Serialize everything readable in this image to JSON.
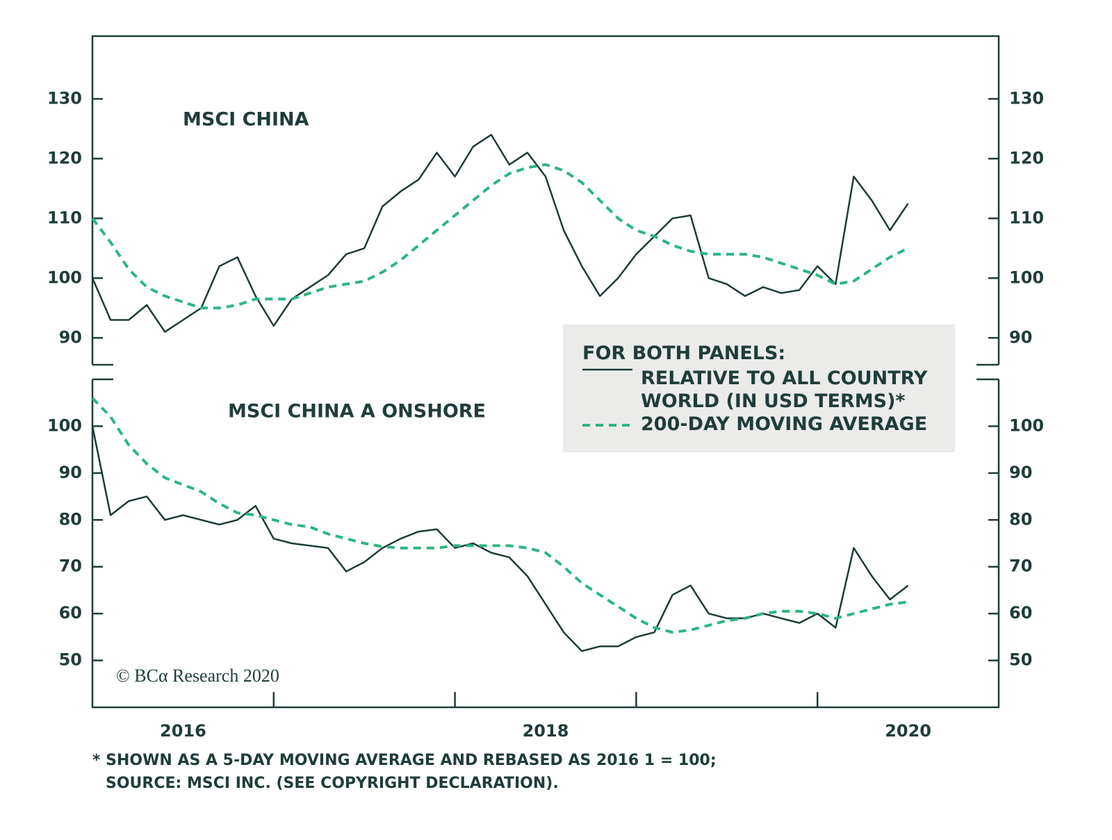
{
  "chart_data": [
    {
      "type": "line",
      "title": "MSCI CHINA",
      "legend_title": "FOR BOTH PANELS:",
      "x": [
        2016,
        2016.1,
        2016.2,
        2016.3,
        2016.4,
        2016.5,
        2016.6,
        2016.7,
        2016.8,
        2016.9,
        2017,
        2017.1,
        2017.2,
        2017.3,
        2017.4,
        2017.5,
        2017.6,
        2017.7,
        2017.8,
        2017.9,
        2018,
        2018.1,
        2018.2,
        2018.3,
        2018.4,
        2018.5,
        2018.6,
        2018.7,
        2018.8,
        2018.9,
        2019,
        2019.1,
        2019.2,
        2019.3,
        2019.4,
        2019.5,
        2019.6,
        2019.7,
        2019.8,
        2019.9,
        2020,
        2020.1,
        2020.2,
        2020.3,
        2020.4,
        2020.5
      ],
      "xlim": [
        2016,
        2021
      ],
      "ylim": [
        85.5,
        140.5
      ],
      "yticks": [
        90,
        100,
        110,
        120,
        130
      ],
      "series": [
        {
          "name": "RELATIVE TO ALL COUNTRY WORLD (IN USD TERMS)*",
          "color": "#1e3b39",
          "line_style": "solid",
          "values": [
            100,
            93,
            93,
            95.5,
            91,
            93,
            95,
            102,
            103.5,
            97,
            92,
            96.5,
            98.5,
            100.5,
            104,
            105,
            112,
            114.5,
            116.5,
            121,
            117,
            122,
            124,
            119,
            121,
            117,
            108,
            102,
            97,
            100,
            104,
            107,
            110,
            110.5,
            100,
            99,
            97,
            98.5,
            97.5,
            98,
            102,
            99,
            117,
            113,
            108,
            112.5
          ]
        },
        {
          "name": "200-DAY MOVING AVERAGE",
          "color": "#2bb67f",
          "line_style": "dashed",
          "values": [
            110,
            106,
            101.5,
            98.5,
            97,
            96,
            95,
            95,
            95.5,
            96.5,
            96.5,
            96.5,
            97.5,
            98.5,
            99,
            99.5,
            101,
            103,
            105.5,
            108,
            110.5,
            113,
            115.5,
            117.5,
            118.5,
            119,
            118,
            116,
            113,
            110,
            108,
            107,
            105.5,
            104.5,
            104,
            104,
            104,
            103.5,
            102.5,
            101.5,
            100.5,
            99,
            99.5,
            101.5,
            103.5,
            105
          ]
        }
      ]
    },
    {
      "type": "line",
      "title": "MSCI CHINA A ONSHORE",
      "x": [
        2016,
        2016.1,
        2016.2,
        2016.3,
        2016.4,
        2016.5,
        2016.6,
        2016.7,
        2016.8,
        2016.9,
        2017,
        2017.1,
        2017.2,
        2017.3,
        2017.4,
        2017.5,
        2017.6,
        2017.7,
        2017.8,
        2017.9,
        2018,
        2018.1,
        2018.2,
        2018.3,
        2018.4,
        2018.5,
        2018.6,
        2018.7,
        2018.8,
        2018.9,
        2019,
        2019.1,
        2019.2,
        2019.3,
        2019.4,
        2019.5,
        2019.6,
        2019.7,
        2019.8,
        2019.9,
        2020,
        2020.1,
        2020.2,
        2020.3,
        2020.4,
        2020.5
      ],
      "xlim": [
        2016,
        2021
      ],
      "xticks": [
        {
          "value": 2016.5,
          "label": "2016"
        },
        {
          "value": 2018.5,
          "label": "2018"
        },
        {
          "value": 2020.5,
          "label": "2020"
        }
      ],
      "xminorticks": [
        2017,
        2018,
        2019,
        2020
      ],
      "ylim": [
        40,
        110
      ],
      "yticks": [
        50,
        60,
        70,
        80,
        90,
        100
      ],
      "series": [
        {
          "color": "#1e3b39",
          "line_style": "solid",
          "values": [
            100,
            81,
            84,
            85,
            80,
            81,
            80,
            79,
            80,
            83,
            76,
            75,
            74.5,
            74,
            69,
            71,
            74,
            76,
            77.5,
            78,
            74,
            75,
            73,
            72,
            68,
            62,
            56,
            52,
            53,
            53,
            55,
            56,
            64,
            66,
            60,
            59,
            59,
            60,
            59,
            58,
            60,
            57,
            74,
            68,
            63,
            66
          ]
        },
        {
          "color": "#2bb67f",
          "line_style": "dashed",
          "values": [
            106,
            102,
            96,
            92,
            89,
            87.5,
            86,
            83.5,
            81.5,
            81,
            80,
            79,
            78.5,
            77,
            76,
            75,
            74.3,
            74,
            74,
            74,
            74.5,
            74.5,
            74.5,
            74.5,
            74,
            73,
            70,
            66.5,
            64,
            61.5,
            59,
            57,
            56,
            56.5,
            57.5,
            58.5,
            59,
            60,
            60.5,
            60.5,
            60,
            59,
            60,
            61,
            62,
            62.5
          ]
        }
      ]
    }
  ],
  "copyright": "© BCα Research 2020",
  "footnote": [
    "* SHOWN AS A 5-DAY MOVING AVERAGE AND REBASED AS 2016 1 = 100;",
    "SOURCE: MSCI INC. (SEE COPYRIGHT DECLARATION)."
  ]
}
